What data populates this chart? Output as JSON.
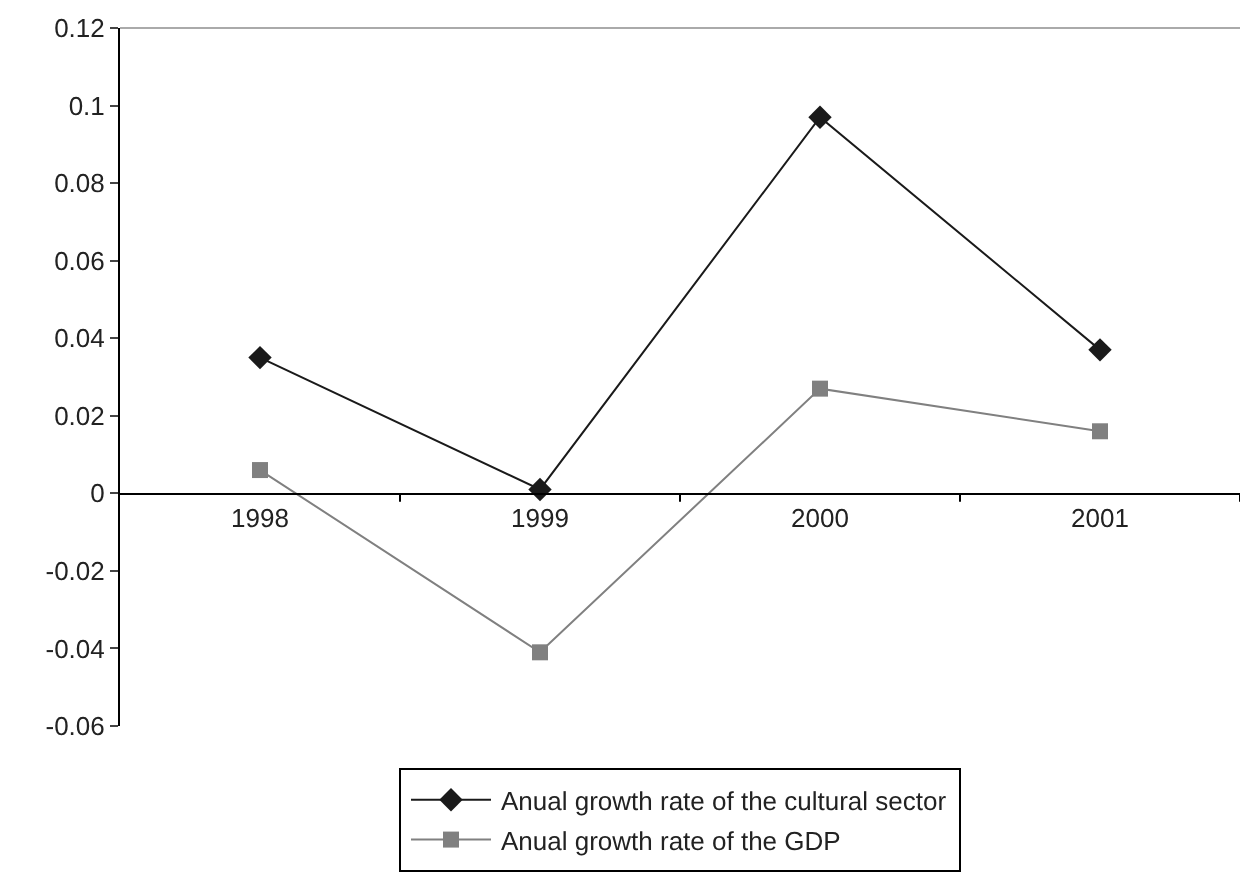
{
  "chart_data": {
    "type": "line",
    "categories": [
      "1998",
      "1999",
      "2000",
      "2001"
    ],
    "series": [
      {
        "name": "Anual growth rate of the cultural sector",
        "color": "#1a1a1a",
        "marker": "diamond",
        "values": [
          0.035,
          0.001,
          0.097,
          0.037
        ]
      },
      {
        "name": "Anual growth rate of the GDP",
        "color": "#808080",
        "marker": "square",
        "values": [
          0.006,
          -0.041,
          0.027,
          0.016
        ]
      }
    ],
    "ylim": [
      -0.06,
      0.12
    ],
    "yticks": [
      -0.06,
      -0.04,
      -0.02,
      0,
      0.02,
      0.04,
      0.06,
      0.08,
      0.1,
      0.12
    ],
    "legend": "bottom",
    "line_style": "solid"
  }
}
